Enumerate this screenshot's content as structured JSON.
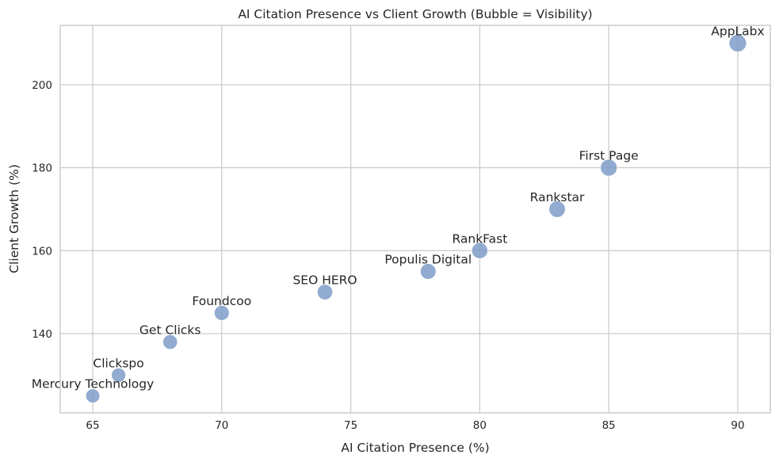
{
  "chart_data": {
    "type": "scatter",
    "title": "AI Citation Presence vs Client Growth (Bubble = Visibility)",
    "xlabel": "AI Citation Presence (%)",
    "ylabel": "Client Growth (%)",
    "xlim": [
      63.74,
      91.26
    ],
    "ylim": [
      120.9,
      214.3
    ],
    "xticks": [
      65,
      70,
      75,
      80,
      85,
      90
    ],
    "yticks": [
      140,
      160,
      180,
      200
    ],
    "grid": true,
    "bubble_color": "#7f9cc8",
    "points": [
      {
        "label": "Mercury Technology",
        "x": 65,
        "y": 125,
        "visibility": 60
      },
      {
        "label": "Clickspo",
        "x": 66,
        "y": 130,
        "visibility": 62
      },
      {
        "label": "Get Clicks",
        "x": 68,
        "y": 138,
        "visibility": 65
      },
      {
        "label": "Foundcoo",
        "x": 70,
        "y": 145,
        "visibility": 68
      },
      {
        "label": "SEO HERO",
        "x": 74,
        "y": 150,
        "visibility": 72
      },
      {
        "label": "Populis Digital",
        "x": 78,
        "y": 155,
        "visibility": 75
      },
      {
        "label": "RankFast",
        "x": 80,
        "y": 160,
        "visibility": 78
      },
      {
        "label": "Rankstar",
        "x": 83,
        "y": 170,
        "visibility": 82
      },
      {
        "label": "First Page",
        "x": 85,
        "y": 180,
        "visibility": 85
      },
      {
        "label": "AppLabx",
        "x": 90,
        "y": 210,
        "visibility": 92
      }
    ]
  }
}
